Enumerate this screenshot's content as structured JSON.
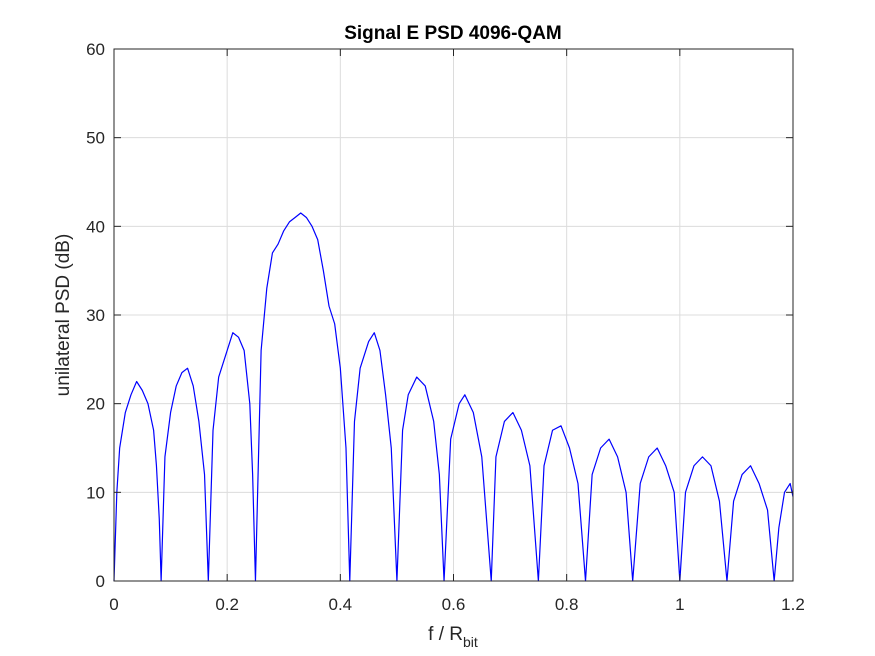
{
  "chart_data": {
    "type": "line",
    "title": "Signal E PSD 4096-QAM",
    "xlabel": {
      "main": "f / R",
      "sub": "bit"
    },
    "ylabel": "unilateral PSD (dB)",
    "xlim": [
      0,
      1.2
    ],
    "ylim": [
      0,
      60
    ],
    "xticks": [
      0,
      0.2,
      0.4,
      0.6,
      0.8,
      1,
      1.2
    ],
    "xtick_labels": [
      "0",
      "0.2",
      "0.4",
      "0.6",
      "0.8",
      "1",
      "1.2"
    ],
    "yticks": [
      0,
      10,
      20,
      30,
      40,
      50,
      60
    ],
    "ytick_labels": [
      "0",
      "10",
      "20",
      "30",
      "40",
      "50",
      "60"
    ],
    "grid": true,
    "line_color": "#0000ff",
    "series": [
      {
        "x": [
          0,
          0.005,
          0.01,
          0.02,
          0.03,
          0.04,
          0.05,
          0.06,
          0.07,
          0.075,
          0.08,
          0.0833,
          0.0833,
          0.09,
          0.1,
          0.11,
          0.12,
          0.13,
          0.14,
          0.15,
          0.16,
          0.1667,
          0.1667,
          0.175,
          0.185,
          0.2,
          0.21,
          0.22,
          0.23,
          0.24,
          0.245,
          0.25,
          0.25,
          0.26,
          0.27,
          0.28,
          0.29,
          0.3,
          0.31,
          0.32,
          0.33,
          0.34,
          0.35,
          0.36,
          0.37,
          0.38,
          0.39,
          0.4,
          0.41,
          0.4167,
          0.4167,
          0.425,
          0.435,
          0.45,
          0.46,
          0.47,
          0.48,
          0.49,
          0.5,
          0.5,
          0.51,
          0.52,
          0.535,
          0.55,
          0.565,
          0.575,
          0.5833,
          0.5833,
          0.595,
          0.61,
          0.62,
          0.635,
          0.65,
          0.6667,
          0.6667,
          0.675,
          0.69,
          0.705,
          0.72,
          0.735,
          0.75,
          0.75,
          0.76,
          0.775,
          0.79,
          0.805,
          0.82,
          0.8333,
          0.8333,
          0.845,
          0.86,
          0.875,
          0.89,
          0.905,
          0.9167,
          0.9167,
          0.93,
          0.945,
          0.96,
          0.975,
          0.99,
          1.0,
          1.0,
          1.01,
          1.025,
          1.04,
          1.055,
          1.07,
          1.0833,
          1.0833,
          1.095,
          1.11,
          1.125,
          1.14,
          1.155,
          1.1667,
          1.1667,
          1.175,
          1.185,
          1.195,
          1.2
        ],
        "y": [
          0,
          10,
          15,
          19,
          21,
          22.5,
          21.5,
          20,
          17,
          13,
          7,
          0,
          0,
          14,
          19,
          22,
          23.5,
          24,
          22,
          18,
          12,
          0,
          0,
          17,
          23,
          26,
          28,
          27.5,
          26,
          20,
          12,
          0,
          0,
          26,
          33,
          37,
          38,
          39.5,
          40.5,
          41,
          41.5,
          41,
          40,
          38.5,
          35,
          31,
          29,
          24,
          15,
          0,
          0,
          18,
          24,
          27,
          28,
          26,
          21,
          15,
          0,
          0,
          17,
          21,
          23,
          22,
          18,
          12,
          0,
          0,
          16,
          20,
          21,
          19,
          14,
          0,
          0,
          14,
          18,
          19,
          17,
          13,
          0,
          0,
          13,
          17,
          17.5,
          15,
          11,
          0,
          0,
          12,
          15,
          16,
          14,
          10,
          0,
          0,
          11,
          14,
          15,
          13,
          10,
          0,
          0,
          10,
          13,
          14,
          13,
          9,
          0,
          0,
          9,
          12,
          13,
          11,
          8,
          0,
          0,
          6,
          10,
          11,
          9.5
        ]
      }
    ]
  }
}
